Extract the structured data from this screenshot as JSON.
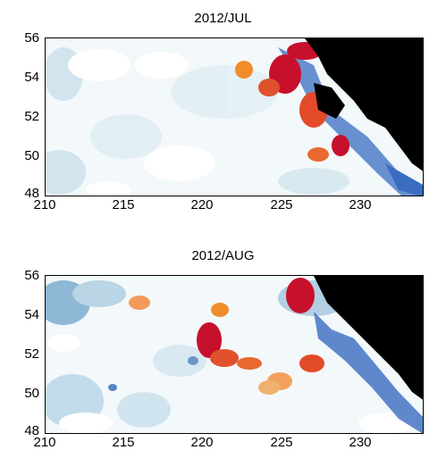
{
  "colors": {
    "land": "#000000",
    "ocean_base": "#eef6f8",
    "cool": "#2f63b8",
    "cool_light": "#9cc3dc",
    "warm": "#f08c2a",
    "hot": "#c7102b",
    "missing": "#ffffff"
  },
  "panels": [
    {
      "title": "2012/JUL",
      "y_ticks": [
        "56",
        "54",
        "52",
        "50",
        "48"
      ],
      "x_ticks": [
        "210",
        "215",
        "220",
        "225",
        "230"
      ]
    },
    {
      "title": "2012/AUG",
      "y_ticks": [
        "56",
        "54",
        "52",
        "50",
        "48"
      ],
      "x_ticks": [
        "210",
        "215",
        "220",
        "225",
        "230"
      ]
    }
  ],
  "chart_data": [
    {
      "type": "heatmap",
      "title": "2012/JUL",
      "xlim": [
        210,
        234
      ],
      "ylim": [
        48,
        56
      ],
      "x_ticks": [
        210,
        215,
        220,
        225,
        230
      ],
      "y_ticks": [
        48,
        50,
        52,
        54,
        56
      ],
      "colormap": "blue-white-red diverging; black = land, white = no data"
    },
    {
      "type": "heatmap",
      "title": "2012/AUG",
      "xlim": [
        210,
        234
      ],
      "ylim": [
        48,
        56
      ],
      "x_ticks": [
        210,
        215,
        220,
        225,
        230
      ],
      "y_ticks": [
        48,
        50,
        52,
        54,
        56
      ],
      "colormap": "blue-white-red diverging; black = land, white = no data"
    }
  ]
}
